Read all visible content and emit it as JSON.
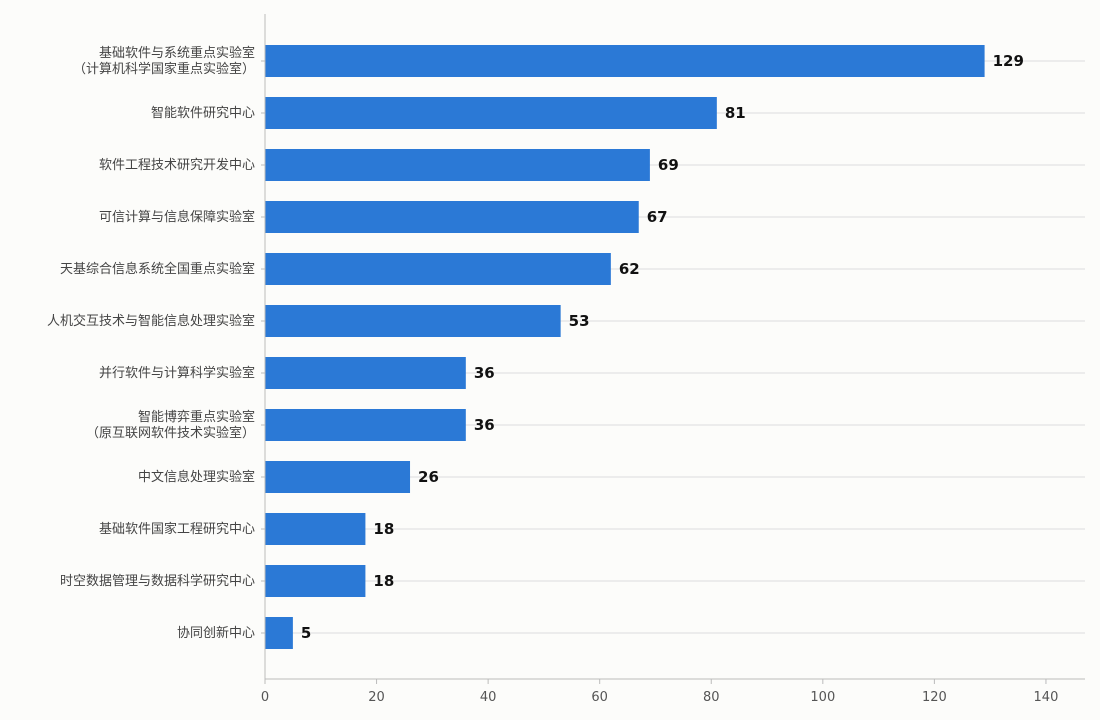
{
  "chart_data": {
    "type": "bar",
    "orientation": "horizontal",
    "categories": [
      [
        "基础软件与系统重点实验室",
        "（计算机科学国家重点实验室）"
      ],
      [
        "智能软件研究中心"
      ],
      [
        "软件工程技术研究开发中心"
      ],
      [
        "可信计算与信息保障实验室"
      ],
      [
        "天基综合信息系统全国重点实验室"
      ],
      [
        "人机交互技术与智能信息处理实验室"
      ],
      [
        "并行软件与计算科学实验室"
      ],
      [
        "智能博弈重点实验室",
        "（原互联网软件技术实验室）"
      ],
      [
        "中文信息处理实验室"
      ],
      [
        "基础软件国家工程研究中心"
      ],
      [
        "时空数据管理与数据科学研究中心"
      ],
      [
        "协同创新中心"
      ]
    ],
    "values": [
      129,
      81,
      69,
      67,
      62,
      53,
      36,
      36,
      26,
      18,
      18,
      5
    ],
    "value_labels": [
      "129",
      "81",
      "69",
      "67",
      "62",
      "53",
      "36",
      "36",
      "26",
      "18",
      "18",
      "5"
    ],
    "xlim": [
      0,
      147
    ],
    "xticks": [
      0,
      20,
      40,
      60,
      80,
      100,
      120,
      140
    ],
    "xtick_labels": [
      "0",
      "20",
      "40",
      "60",
      "80",
      "100",
      "120",
      "140"
    ],
    "title": "",
    "xlabel": "",
    "ylabel": "",
    "grid": "horizontal",
    "bar_color": "#2b79d6",
    "grid_color": "#dddddd",
    "axis_color": "#bbbbbb"
  }
}
